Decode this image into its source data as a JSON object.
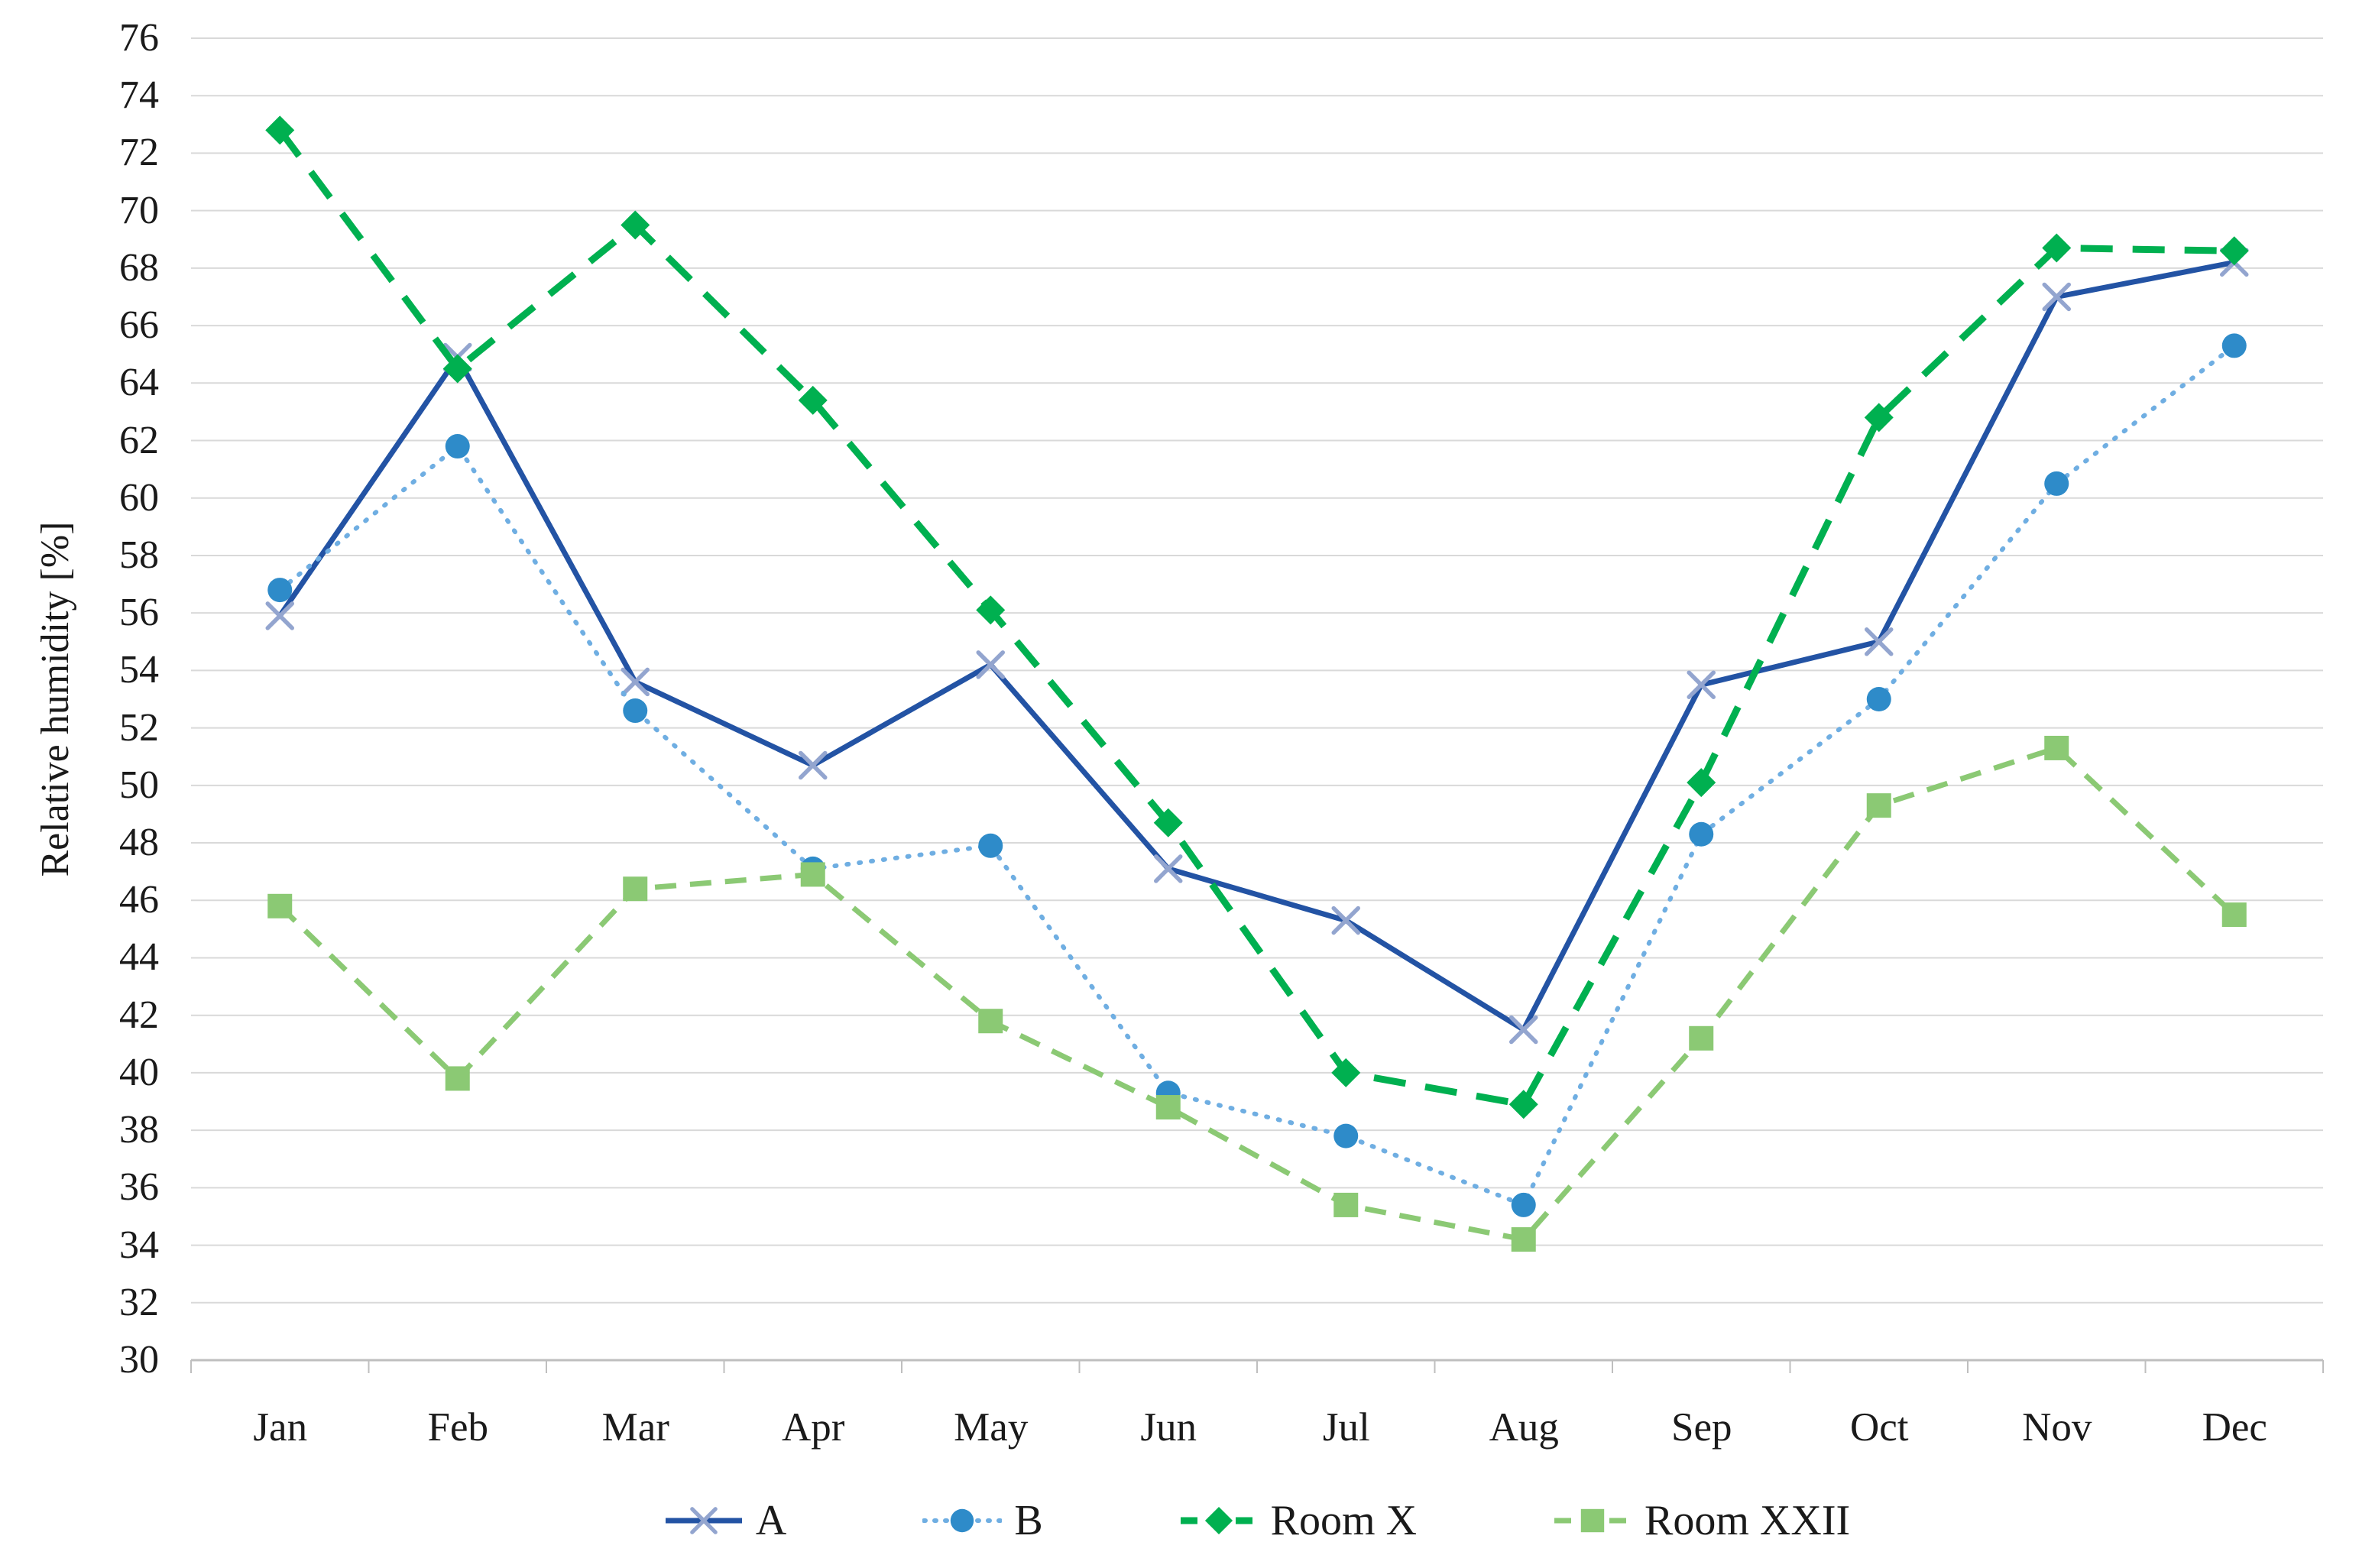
{
  "chart_data": {
    "type": "line",
    "title": "",
    "xlabel": "",
    "ylabel": "Relative humidity [%]",
    "ylim": [
      30,
      76
    ],
    "ytick_step": 2,
    "grid": true,
    "legend_position": "bottom",
    "categories": [
      "Jan",
      "Feb",
      "Mar",
      "Apr",
      "May",
      "Jun",
      "Jul",
      "Aug",
      "Sep",
      "Oct",
      "Nov",
      "Dec"
    ],
    "series": [
      {
        "name": "A",
        "line_color": "#2353A4",
        "marker_color": "#93A5CF",
        "line_style": "solid",
        "marker": "x",
        "values": [
          55.9,
          64.9,
          53.6,
          50.7,
          54.2,
          47.1,
          45.3,
          41.5,
          53.5,
          55.0,
          67.0,
          68.2
        ]
      },
      {
        "name": "B",
        "line_color": "#6FAEE2",
        "marker_color": "#2E8BC9",
        "line_style": "dotted",
        "marker": "circle",
        "values": [
          56.8,
          61.8,
          52.6,
          47.1,
          47.9,
          39.3,
          37.8,
          35.4,
          48.3,
          53.0,
          60.5,
          65.3
        ]
      },
      {
        "name": "Room X",
        "line_color": "#00B050",
        "marker_color": "#00B050",
        "line_style": "dashed",
        "marker": "diamond",
        "values": [
          72.8,
          64.5,
          69.5,
          63.4,
          56.1,
          48.7,
          40.0,
          38.9,
          50.1,
          62.8,
          68.7,
          68.6
        ]
      },
      {
        "name": "Room XXII",
        "line_color": "#8BC974",
        "marker_color": "#8BC974",
        "line_style": "dashed-sm",
        "marker": "square",
        "values": [
          45.8,
          39.8,
          46.4,
          46.9,
          41.8,
          38.8,
          35.4,
          34.2,
          41.2,
          49.3,
          51.3,
          45.5
        ]
      }
    ],
    "axis_color": "#BFBFBF",
    "grid_color": "#D9D9D9",
    "text_color": "#1a1a1a"
  }
}
